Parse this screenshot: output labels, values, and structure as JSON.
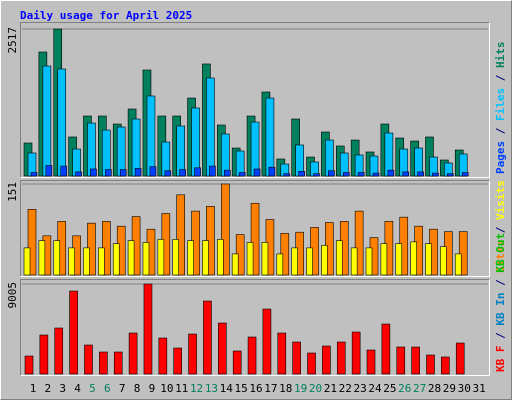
{
  "chart_data": [
    {
      "type": "bar",
      "title": "Daily usage for April 2025",
      "ylim": [
        0,
        2517
      ],
      "yticks": [
        2517
      ],
      "legend_separator": " / ",
      "series": [
        {
          "name": "Hits",
          "color": "#00805c",
          "values": [
            565,
            2123,
            2517,
            668,
            1027,
            1027,
            890,
            1147,
            1815,
            1027,
            1027,
            1335,
            1918,
            873,
            479,
            1027,
            1438,
            291,
            976,
            325,
            753,
            514,
            616,
            411,
            890,
            650,
            599,
            668,
            274,
            445,
            null
          ]
        },
        {
          "name": "Files",
          "color": "#00c0ff",
          "values": [
            394,
            1883,
            1832,
            462,
            907,
            787,
            839,
            976,
            1370,
            582,
            856,
            1164,
            1678,
            719,
            428,
            924,
            1335,
            205,
            531,
            240,
            616,
            394,
            360,
            342,
            736,
            462,
            479,
            325,
            223,
            377,
            null
          ]
        },
        {
          "name": "Pages",
          "color": "#0040ff",
          "values": [
            60,
            180,
            170,
            70,
            120,
            110,
            110,
            130,
            160,
            90,
            110,
            140,
            170,
            100,
            60,
            120,
            150,
            40,
            80,
            40,
            90,
            60,
            60,
            50,
            100,
            70,
            70,
            50,
            40,
            60,
            null
          ]
        }
      ]
    },
    {
      "type": "bar",
      "ylim": [
        0,
        151
      ],
      "yticks": [
        151
      ],
      "legend_separator": " / ",
      "series": [
        {
          "name": "Sites",
          "color": "#ff8000",
          "values": [
            109,
            65,
            89,
            65,
            86,
            89,
            81,
            97,
            76,
            102,
            133,
            106,
            114,
            151,
            67,
            119,
            92,
            69,
            71,
            79,
            87,
            89,
            106,
            62,
            89,
            96,
            81,
            76,
            72,
            72,
            null
          ]
        },
        {
          "name": "Visits",
          "color": "#ffff00",
          "values": [
            45,
            57,
            57,
            45,
            45,
            45,
            52,
            57,
            54,
            59,
            59,
            57,
            57,
            59,
            35,
            54,
            54,
            35,
            45,
            45,
            49,
            57,
            45,
            45,
            52,
            52,
            55,
            52,
            47,
            35,
            null
          ]
        }
      ]
    },
    {
      "type": "bar",
      "ylim": [
        0,
        9005
      ],
      "yticks": [
        9005
      ],
      "legend_separator": " / ",
      "categories": [
        "1",
        "2",
        "3",
        "4",
        "5",
        "6",
        "7",
        "8",
        "9",
        "10",
        "11",
        "12",
        "13",
        "14",
        "15",
        "16",
        "17",
        "18",
        "19",
        "20",
        "21",
        "22",
        "23",
        "24",
        "25",
        "26",
        "27",
        "28",
        "29",
        "30",
        "31"
      ],
      "category_colors": [
        "#000000",
        "#000000",
        "#000000",
        "#000000",
        "#00805c",
        "#00805c",
        "#000000",
        "#000000",
        "#000000",
        "#000000",
        "#000000",
        "#00805c",
        "#00805c",
        "#000000",
        "#000000",
        "#000000",
        "#000000",
        "#000000",
        "#00805c",
        "#00805c",
        "#000000",
        "#000000",
        "#000000",
        "#000000",
        "#000000",
        "#00805c",
        "#00805c",
        "#000000",
        "#000000",
        "#000000",
        "#000000"
      ],
      "series": [
        {
          "name": "KB F",
          "color": "#ff0000",
          "values": [
            1800,
            3900,
            4600,
            8300,
            2900,
            2200,
            2200,
            4100,
            9005,
            3600,
            2600,
            4000,
            7300,
            5100,
            2300,
            3700,
            6500,
            4100,
            3200,
            2100,
            2800,
            3200,
            4200,
            2400,
            5000,
            2700,
            2700,
            1900,
            1700,
            3100,
            null
          ]
        },
        {
          "name": "KB In",
          "color": "#0080c0"
        },
        {
          "name": "KB Out",
          "color": "#00c000"
        }
      ]
    }
  ]
}
